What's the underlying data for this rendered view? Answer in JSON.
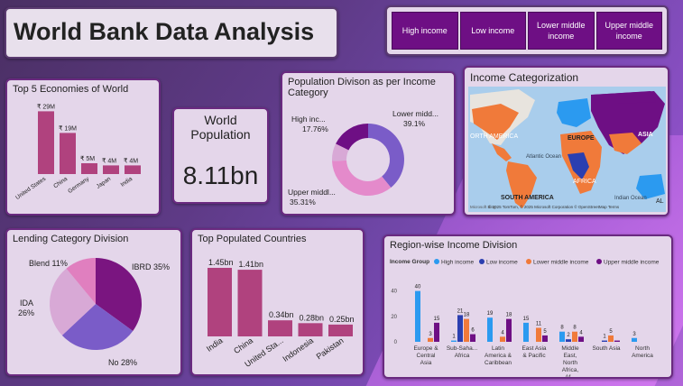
{
  "title": "World Bank Data Analysis",
  "slicer": {
    "items": [
      "High income",
      "Low income",
      "Lower middle income",
      "Upper middle income"
    ]
  },
  "economies": {
    "title": "Top 5 Economies of World",
    "chart_data": {
      "type": "bar",
      "categories": [
        "United States",
        "China",
        "Germany",
        "Japan",
        "India"
      ],
      "values": [
        29,
        19,
        5,
        4,
        4
      ],
      "labels": [
        "₹ 29M",
        "₹ 19M",
        "₹ 5M",
        "₹ 4M",
        "₹ 4M"
      ],
      "color": "#b0427e"
    }
  },
  "population": {
    "label": "World Population",
    "value": "8.11bn"
  },
  "donut": {
    "title": "Population Divison as per Income Category",
    "chart_data": {
      "type": "pie",
      "slices": [
        {
          "name": "Lower midd...",
          "value": 39.1,
          "label": "39.1%",
          "color": "#7a5cc8"
        },
        {
          "name": "Upper middl...",
          "value": 35.31,
          "label": "35.31%",
          "color": "#e48acb"
        },
        {
          "name": "Low income",
          "value": 7.83,
          "label": "",
          "color": "#d8a9d6"
        },
        {
          "name": "High inc...",
          "value": 17.76,
          "label": "17.76%",
          "color": "#6e0f84"
        }
      ]
    }
  },
  "map": {
    "title": "Income Categorization",
    "labels": [
      "ORTH AMERICA",
      "EUROPE",
      "ASIA",
      "Atlantic Ocean",
      "AFRICA",
      "SOUTH AMERICA",
      "Indian Ocean",
      "AL"
    ],
    "copyright": "© 2025 TomTom, © 2025 Microsoft Corporation  © OpenStreetMap  Terms",
    "brand": "Microsoft Bing"
  },
  "lending": {
    "title": "Lending Category Division",
    "chart_data": {
      "type": "pie",
      "slices": [
        {
          "name": "IBRD",
          "value": 35,
          "label": "IBRD 35%",
          "color": "#7a1580"
        },
        {
          "name": "No",
          "value": 28,
          "label": "No 28%",
          "color": "#7a5cc8"
        },
        {
          "name": "IDA",
          "value": 26,
          "label": "IDA 26%",
          "color": "#d8a9d6"
        },
        {
          "name": "Blend",
          "value": 11,
          "label": "Blend 11%",
          "color": "#e07fbf"
        }
      ]
    }
  },
  "toppop": {
    "title": "Top Populated Countries",
    "chart_data": {
      "type": "bar",
      "categories": [
        "India",
        "China",
        "United Sta...",
        "Indonesia",
        "Pakistan"
      ],
      "values": [
        1.45,
        1.41,
        0.34,
        0.28,
        0.25
      ],
      "labels": [
        "1.45bn",
        "1.41bn",
        "0.34bn",
        "0.28bn",
        "0.25bn"
      ],
      "color": "#b0427e"
    }
  },
  "region": {
    "title": "Region-wise Income Division",
    "legend_title": "Income Group",
    "chart_data": {
      "type": "bar",
      "categories": [
        "Europe & Central Asia",
        "Sub-Saha... Africa",
        "Latin America & Caribbean",
        "East Asia & Pacific",
        "Middle East, North Africa, Af...",
        "South Asia",
        "North America"
      ],
      "series": [
        {
          "name": "High income",
          "color": "#2b9af0",
          "values": [
            40,
            1,
            19,
            15,
            8,
            0,
            3
          ]
        },
        {
          "name": "Low income",
          "color": "#2b3fb0",
          "values": [
            0,
            21,
            0,
            0,
            2,
            1,
            0
          ]
        },
        {
          "name": "Lower middle income",
          "color": "#f07a3a",
          "values": [
            3,
            18,
            4,
            11,
            8,
            5,
            0
          ]
        },
        {
          "name": "Upper middle income",
          "color": "#6e0f84",
          "values": [
            15,
            6,
            18,
            5,
            4,
            1,
            0
          ]
        }
      ],
      "data_labels": [
        [
          "40",
          "",
          "3",
          "15"
        ],
        [
          "1",
          "21",
          "18",
          "6"
        ],
        [
          "19",
          "",
          "4",
          "18"
        ],
        [
          "15",
          "",
          "11",
          "5"
        ],
        [
          "8",
          "2",
          "8",
          "4"
        ],
        [
          "",
          "1",
          "5",
          ""
        ],
        [
          "3",
          "",
          "",
          ""
        ]
      ],
      "yticks": [
        0,
        20,
        40
      ],
      "ylim": [
        0,
        44
      ]
    }
  }
}
